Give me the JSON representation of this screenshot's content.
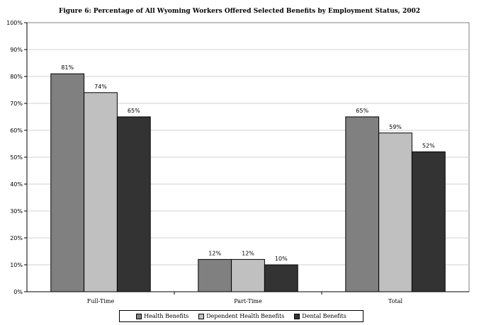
{
  "chart_data": {
    "type": "bar",
    "title": "Figure 6: Percentage of All Wyoming Workers Offered Selected Benefits by Employment Status, 2002",
    "xlabel": "",
    "ylabel": "",
    "categories": [
      "Full-Time",
      "Part-Time",
      "Total"
    ],
    "series": [
      {
        "name": "Health Benefits",
        "values": [
          81,
          12,
          65
        ],
        "labels": [
          "81%",
          "12%",
          "65%"
        ],
        "color": "#808080"
      },
      {
        "name": "Dependent Health Benefits",
        "values": [
          74,
          12,
          59
        ],
        "labels": [
          "74%",
          "12%",
          "59%"
        ],
        "color": "#c0c0c0"
      },
      {
        "name": "Dental Benefits",
        "values": [
          65,
          10,
          52
        ],
        "labels": [
          "65%",
          "10%",
          "52%"
        ],
        "color": "#333333"
      }
    ],
    "ylim": [
      0,
      100
    ],
    "yticks": [
      "0%",
      "10%",
      "20%",
      "30%",
      "40%",
      "50%",
      "60%",
      "70%",
      "80%",
      "90%",
      "100%"
    ],
    "grid": true,
    "legend_position": "bottom"
  }
}
